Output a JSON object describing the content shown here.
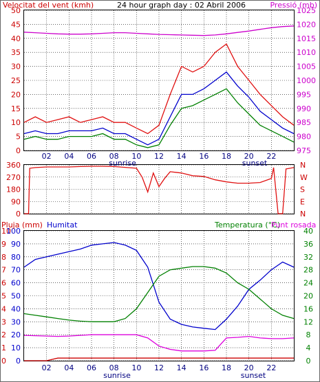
{
  "title": "24 hour graph day : 02 Abril 2006",
  "colors": {
    "wind": "#e01010",
    "gust": "#0000cc",
    "wind_green": "#008000",
    "pressure": "#cc00cc",
    "rain": "#cc0000",
    "humidity": "#0000cc",
    "temperature": "#008000",
    "dewpoint": "#dd00dd",
    "grid": "#000000",
    "sunrise_sunset": "#000080"
  },
  "x_ticks": [
    "02",
    "04",
    "06",
    "08",
    "10",
    "12",
    "14",
    "16",
    "18",
    "20",
    "22"
  ],
  "sun_labels": {
    "sunrise": "sunrise",
    "sunset": "sunset"
  },
  "chart_data": [
    {
      "type": "line",
      "panel": "wind_pressure",
      "ylabel_left": "Velocitat del vent (kmh)",
      "ylabel_right": "Pressió (mb)",
      "ylim_left": [
        0,
        50
      ],
      "ylim_right": [
        975,
        1025
      ],
      "left_ticks": [
        "50",
        "45",
        "40",
        "35",
        "30",
        "25",
        "20",
        "15",
        "10",
        "5",
        "0"
      ],
      "right_ticks": [
        "1025",
        "1020",
        "1015",
        "1010",
        "1005",
        "1000",
        "995",
        "990",
        "985",
        "980",
        "975"
      ],
      "grid": true,
      "x_hours": [
        0,
        1,
        2,
        3,
        4,
        5,
        6,
        7,
        8,
        9,
        10,
        11,
        12,
        13,
        14,
        15,
        16,
        17,
        18,
        19,
        20,
        21,
        22,
        23,
        24
      ],
      "series": [
        {
          "name": "",
          "color_key": "wind",
          "values": [
            10,
            12,
            10,
            11,
            12,
            10,
            11,
            12,
            10,
            10,
            8,
            6,
            9,
            20,
            30,
            28,
            30,
            35,
            38,
            30,
            25,
            20,
            16,
            12,
            9
          ]
        },
        {
          "name": "",
          "color_key": "gust",
          "values": [
            6,
            7,
            6,
            6,
            7,
            7,
            7,
            8,
            6,
            6,
            4,
            2,
            4,
            12,
            20,
            20,
            22,
            25,
            28,
            23,
            19,
            14,
            11,
            8,
            6
          ]
        },
        {
          "name": "",
          "color_key": "wind_green",
          "values": [
            4,
            5,
            4,
            4,
            5,
            5,
            5,
            6,
            4,
            4,
            2,
            1,
            2,
            9,
            15,
            16,
            18,
            20,
            22,
            17,
            13,
            9,
            7,
            5,
            3
          ]
        },
        {
          "name": "",
          "color_key": "pressure",
          "axis": "right",
          "values": [
            1017.2,
            1017.0,
            1016.8,
            1016.6,
            1016.5,
            1016.5,
            1016.6,
            1016.8,
            1017.0,
            1017.0,
            1016.8,
            1016.6,
            1016.4,
            1016.3,
            1016.2,
            1016.1,
            1016.0,
            1016.2,
            1016.6,
            1017.1,
            1017.6,
            1018.2,
            1018.8,
            1019.2,
            1019.4
          ]
        }
      ]
    },
    {
      "type": "line",
      "panel": "wind_direction",
      "ylim": [
        0,
        360
      ],
      "left_ticks": [
        "360",
        "270",
        "180",
        "90",
        "0"
      ],
      "right_ticks": [
        "N",
        "W",
        "S",
        "E",
        "N"
      ],
      "grid": true,
      "x_hours": [
        0,
        0.4,
        0.5,
        1,
        2,
        3,
        4,
        5,
        6,
        7,
        8,
        9,
        10,
        10.5,
        11,
        11.5,
        12,
        12.5,
        13,
        14,
        15,
        16,
        17,
        18,
        19,
        20,
        21,
        22,
        22.2,
        22.6,
        23,
        23.3,
        24
      ],
      "series": [
        {
          "name": "",
          "color_key": "wind",
          "values": [
            0,
            0,
            335,
            340,
            345,
            345,
            345,
            348,
            350,
            350,
            348,
            342,
            335,
            270,
            160,
            300,
            200,
            260,
            310,
            300,
            280,
            275,
            250,
            235,
            225,
            225,
            230,
            260,
            340,
            0,
            0,
            330,
            340
          ]
        }
      ]
    },
    {
      "type": "line",
      "panel": "humidity_temperature",
      "labels": {
        "rain": "Pluja (mm)",
        "humidity": "Humitat",
        "temperature": "Temperatura (°C)",
        "dewpoint": "Punt rosada"
      },
      "rain_ticks": [
        "10",
        "9",
        "8",
        "7",
        "6",
        "5",
        "4",
        "3",
        "2",
        "1",
        "0"
      ],
      "humidity_ticks": [
        "100",
        "90",
        "80",
        "70",
        "60",
        "50",
        "40",
        "30",
        "20",
        "10",
        "0"
      ],
      "temperature_ticks": [
        "40",
        "36",
        "32",
        "28",
        "24",
        "20",
        "16",
        "12",
        "8",
        "4",
        "0"
      ],
      "ylim_humidity": [
        0,
        100
      ],
      "ylim_temperature": [
        0,
        40
      ],
      "ylim_rain": [
        0,
        10
      ],
      "grid": true,
      "x_hours": [
        0,
        1,
        2,
        3,
        4,
        5,
        6,
        7,
        8,
        9,
        10,
        11,
        12,
        13,
        14,
        15,
        16,
        17,
        18,
        19,
        20,
        21,
        22,
        23,
        24
      ],
      "series": [
        {
          "name": "",
          "color_key": "humidity",
          "axis": "humidity",
          "values": [
            72,
            78,
            80,
            82,
            84,
            86,
            89,
            90,
            91,
            89,
            85,
            72,
            45,
            32,
            28,
            26,
            25,
            24,
            32,
            42,
            55,
            62,
            70,
            76,
            72
          ]
        },
        {
          "name": "",
          "color_key": "temperature",
          "axis": "temperature",
          "values": [
            14.5,
            14.0,
            13.5,
            13.0,
            12.5,
            12.2,
            12.0,
            12.0,
            12.0,
            13.0,
            16.0,
            21.0,
            26.0,
            28.0,
            28.5,
            29.0,
            29.0,
            28.5,
            27.0,
            24.0,
            22.0,
            19.0,
            16.0,
            14.0,
            13.0
          ]
        },
        {
          "name": "",
          "color_key": "dewpoint",
          "axis": "temperature",
          "values": [
            7.8,
            7.7,
            7.6,
            7.5,
            7.6,
            7.8,
            8.0,
            8.0,
            8.0,
            8.0,
            8.0,
            7.0,
            4.5,
            3.5,
            3.0,
            3.0,
            3.0,
            3.2,
            7.0,
            7.2,
            7.5,
            7.0,
            6.8,
            6.8,
            7.0
          ]
        },
        {
          "name": "",
          "color_key": "rain",
          "axis": "rain",
          "values": [
            0,
            0,
            0,
            0.2,
            0.2,
            0.2,
            0.2,
            0.2,
            0.2,
            0.2,
            0.2,
            0.2,
            0.2,
            0.2,
            0.2,
            0.2,
            0.2,
            0.2,
            0.2,
            0.2,
            0.2,
            0.2,
            0.2,
            0.2,
            0.2
          ]
        }
      ]
    }
  ]
}
